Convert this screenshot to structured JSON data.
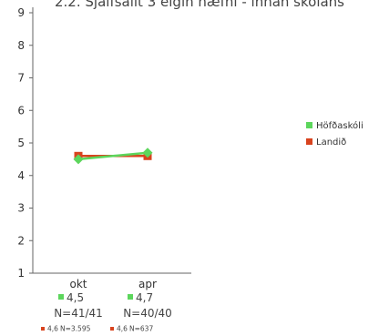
{
  "chart_data": {
    "type": "line",
    "title": "2.2. Sjálfsálit 3 eigin hæfni - innan skólans",
    "categories": [
      "okt",
      "apr"
    ],
    "ylim": [
      1,
      9
    ],
    "yticks": [
      1,
      2,
      3,
      4,
      5,
      6,
      7,
      8,
      9
    ],
    "grid": false,
    "legend_position": "right",
    "series": [
      {
        "name": "Höfðaskóli",
        "color": "#5cd65c",
        "values": [
          4.5,
          4.7
        ],
        "labels": [
          "4,5",
          "4,7"
        ],
        "n_labels": [
          "N=41/41",
          "N=40/40"
        ]
      },
      {
        "name": "Landið",
        "color": "#d8431e",
        "values": [
          4.6,
          4.6
        ],
        "labels": [
          "4,6",
          "4,6"
        ],
        "n_labels": [
          "N=3.595",
          "N=637"
        ]
      }
    ]
  }
}
